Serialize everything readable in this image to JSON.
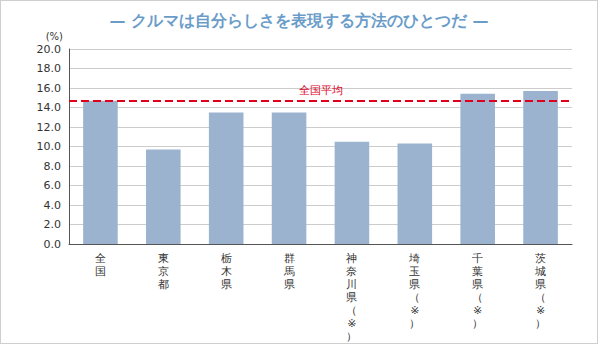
{
  "chart_data": {
    "type": "bar",
    "title": "— クルマは自分らしさを表現する方法のひとつだ —",
    "y_label": "(%)",
    "categories": [
      "全国",
      "東京都",
      "栃木県",
      "群馬県",
      "神奈川県（※）",
      "埼玉県（※）",
      "千葉県（※）",
      "茨城県（※）"
    ],
    "values": [
      14.7,
      9.7,
      13.5,
      13.5,
      10.5,
      10.3,
      15.4,
      15.7
    ],
    "color": "#9bb3cf",
    "ylim": [
      0,
      20
    ],
    "yticks": [
      {
        "value": 0,
        "label": "0.0"
      },
      {
        "value": 2,
        "label": "2.0"
      },
      {
        "value": 4,
        "label": "4.0"
      },
      {
        "value": 6,
        "label": "6.0"
      },
      {
        "value": 8,
        "label": "8.0"
      },
      {
        "value": 10,
        "label": "10.0"
      },
      {
        "value": 12,
        "label": "12.0"
      },
      {
        "value": 14,
        "label": "14.0"
      },
      {
        "value": 16,
        "label": "16.0"
      },
      {
        "value": 18,
        "label": "18.0"
      },
      {
        "value": 20,
        "label": "20.0"
      }
    ],
    "grid": true,
    "annotations": [
      {
        "label": "全国平均",
        "value": 14.7,
        "line_style": "dashed",
        "color": "#e0001b"
      }
    ]
  }
}
